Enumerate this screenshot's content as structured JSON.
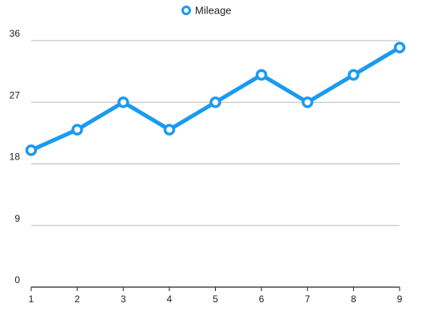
{
  "chart_data": {
    "type": "line",
    "x": [
      1,
      2,
      3,
      4,
      5,
      6,
      7,
      8,
      9
    ],
    "series": [
      {
        "name": "Mileage",
        "values": [
          20,
          23,
          27,
          23,
          27,
          31,
          27,
          31,
          35
        ],
        "color": "#1a9bf0"
      }
    ],
    "ylim": [
      0,
      36
    ],
    "y_ticks": [
      0,
      9,
      18,
      27,
      36
    ],
    "x_ticks": [
      1,
      2,
      3,
      4,
      5,
      6,
      7,
      8,
      9
    ],
    "grid": true,
    "legend_position": "top-center",
    "marker": "hollow-circle",
    "title": "",
    "xlabel": "",
    "ylabel": ""
  }
}
